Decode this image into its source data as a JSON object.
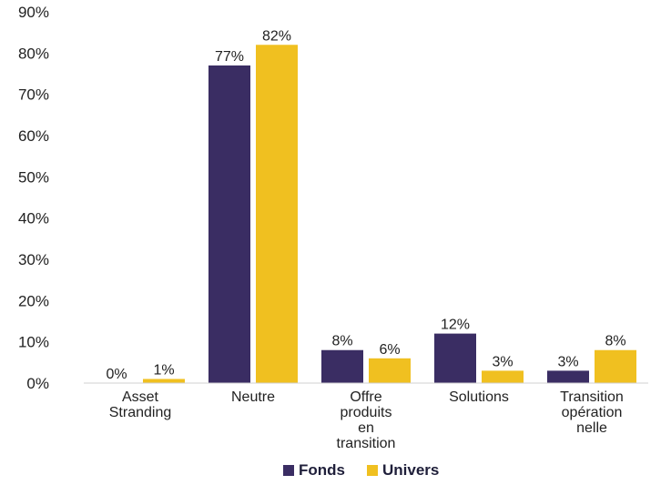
{
  "chart_data": {
    "type": "bar",
    "categories": [
      [
        "Asset",
        "Stranding"
      ],
      [
        "Neutre"
      ],
      [
        "Offre",
        "produits",
        "en",
        "transition"
      ],
      [
        "Solutions"
      ],
      [
        "Transition",
        "opération",
        "nelle"
      ]
    ],
    "series": [
      {
        "name": "Fonds",
        "color": "#3a2d63",
        "values": [
          0,
          77,
          8,
          12,
          3
        ],
        "labels": [
          "0%",
          "77%",
          "8%",
          "12%",
          "3%"
        ]
      },
      {
        "name": "Univers",
        "color": "#f0c020",
        "values": [
          1,
          82,
          6,
          3,
          8
        ],
        "labels": [
          "1%",
          "82%",
          "6%",
          "3%",
          "8%"
        ]
      }
    ],
    "ylim": [
      0,
      90
    ],
    "yticks": [
      0,
      10,
      20,
      30,
      40,
      50,
      60,
      70,
      80,
      90
    ],
    "ytick_labels": [
      "0%",
      "10%",
      "20%",
      "30%",
      "40%",
      "50%",
      "60%",
      "70%",
      "80%",
      "90%"
    ],
    "legend_position": "bottom-center",
    "grid": false
  }
}
